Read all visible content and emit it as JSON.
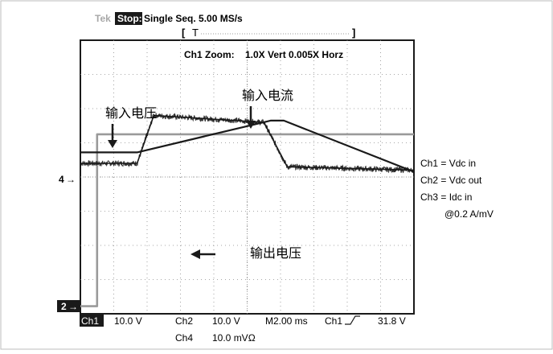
{
  "header": {
    "brand": "Tek",
    "stop_badge": "Stop:",
    "acq_mode": "Single Seq. 5.00 MS/s",
    "trigger_bar_left": "[",
    "trigger_marker": "T",
    "trigger_bar_right": "]"
  },
  "zoom_readout": "Ch1 Zoom:    1.0X Vert 0.005X Horz",
  "annotations": {
    "input_voltage": "输入电压",
    "input_current": "输入电流",
    "output_voltage": "输出电压"
  },
  "markers": {
    "ch4": "4",
    "ch2": "2",
    "arrow_glyph": "→"
  },
  "legend": {
    "ch1": "Ch1 = Vdc in",
    "ch2": "Ch2 = Vdc out",
    "ch3": "Ch3 = Idc in",
    "ch3_scale": "@0.2 A/mV"
  },
  "footer": {
    "row1": {
      "ch1_label": "Ch1",
      "ch1_scale": "10.0 V",
      "ch2_label": "Ch2",
      "ch2_scale": "10.0 V",
      "timebase": "M2.00 ms",
      "trig_source": "Ch1",
      "trig_level": "31.8 V"
    },
    "row2": {
      "ch4_label": "Ch4",
      "ch4_scale": "10.0 mVΩ"
    }
  },
  "colors": {
    "trace": "#1a1a1a",
    "ramp": "#9a9a9a",
    "grid": "#8a8a8a",
    "badge_bg": "#1a1a1a",
    "brand_text": "#a8a8a8",
    "frame_border": "#bdbdbd"
  },
  "chart_data": {
    "type": "line",
    "grid": true,
    "x_divisions": 10,
    "y_divisions": 8,
    "series": [
      {
        "x": [
          0,
          0.5,
          0.5,
          10
        ],
        "y": [
          0.22,
          0.22,
          5.25,
          5.25
        ]
      },
      {
        "x": [
          0,
          1.7,
          5.7,
          6.1,
          10
        ],
        "y": [
          4.72,
          4.72,
          5.65,
          5.65,
          4.15
        ]
      },
      {
        "x": [
          0,
          1.7,
          2.2,
          5.5,
          6.2,
          10
        ],
        "y": [
          4.4,
          4.4,
          5.8,
          5.6,
          4.3,
          4.2
        ]
      }
    ]
  }
}
